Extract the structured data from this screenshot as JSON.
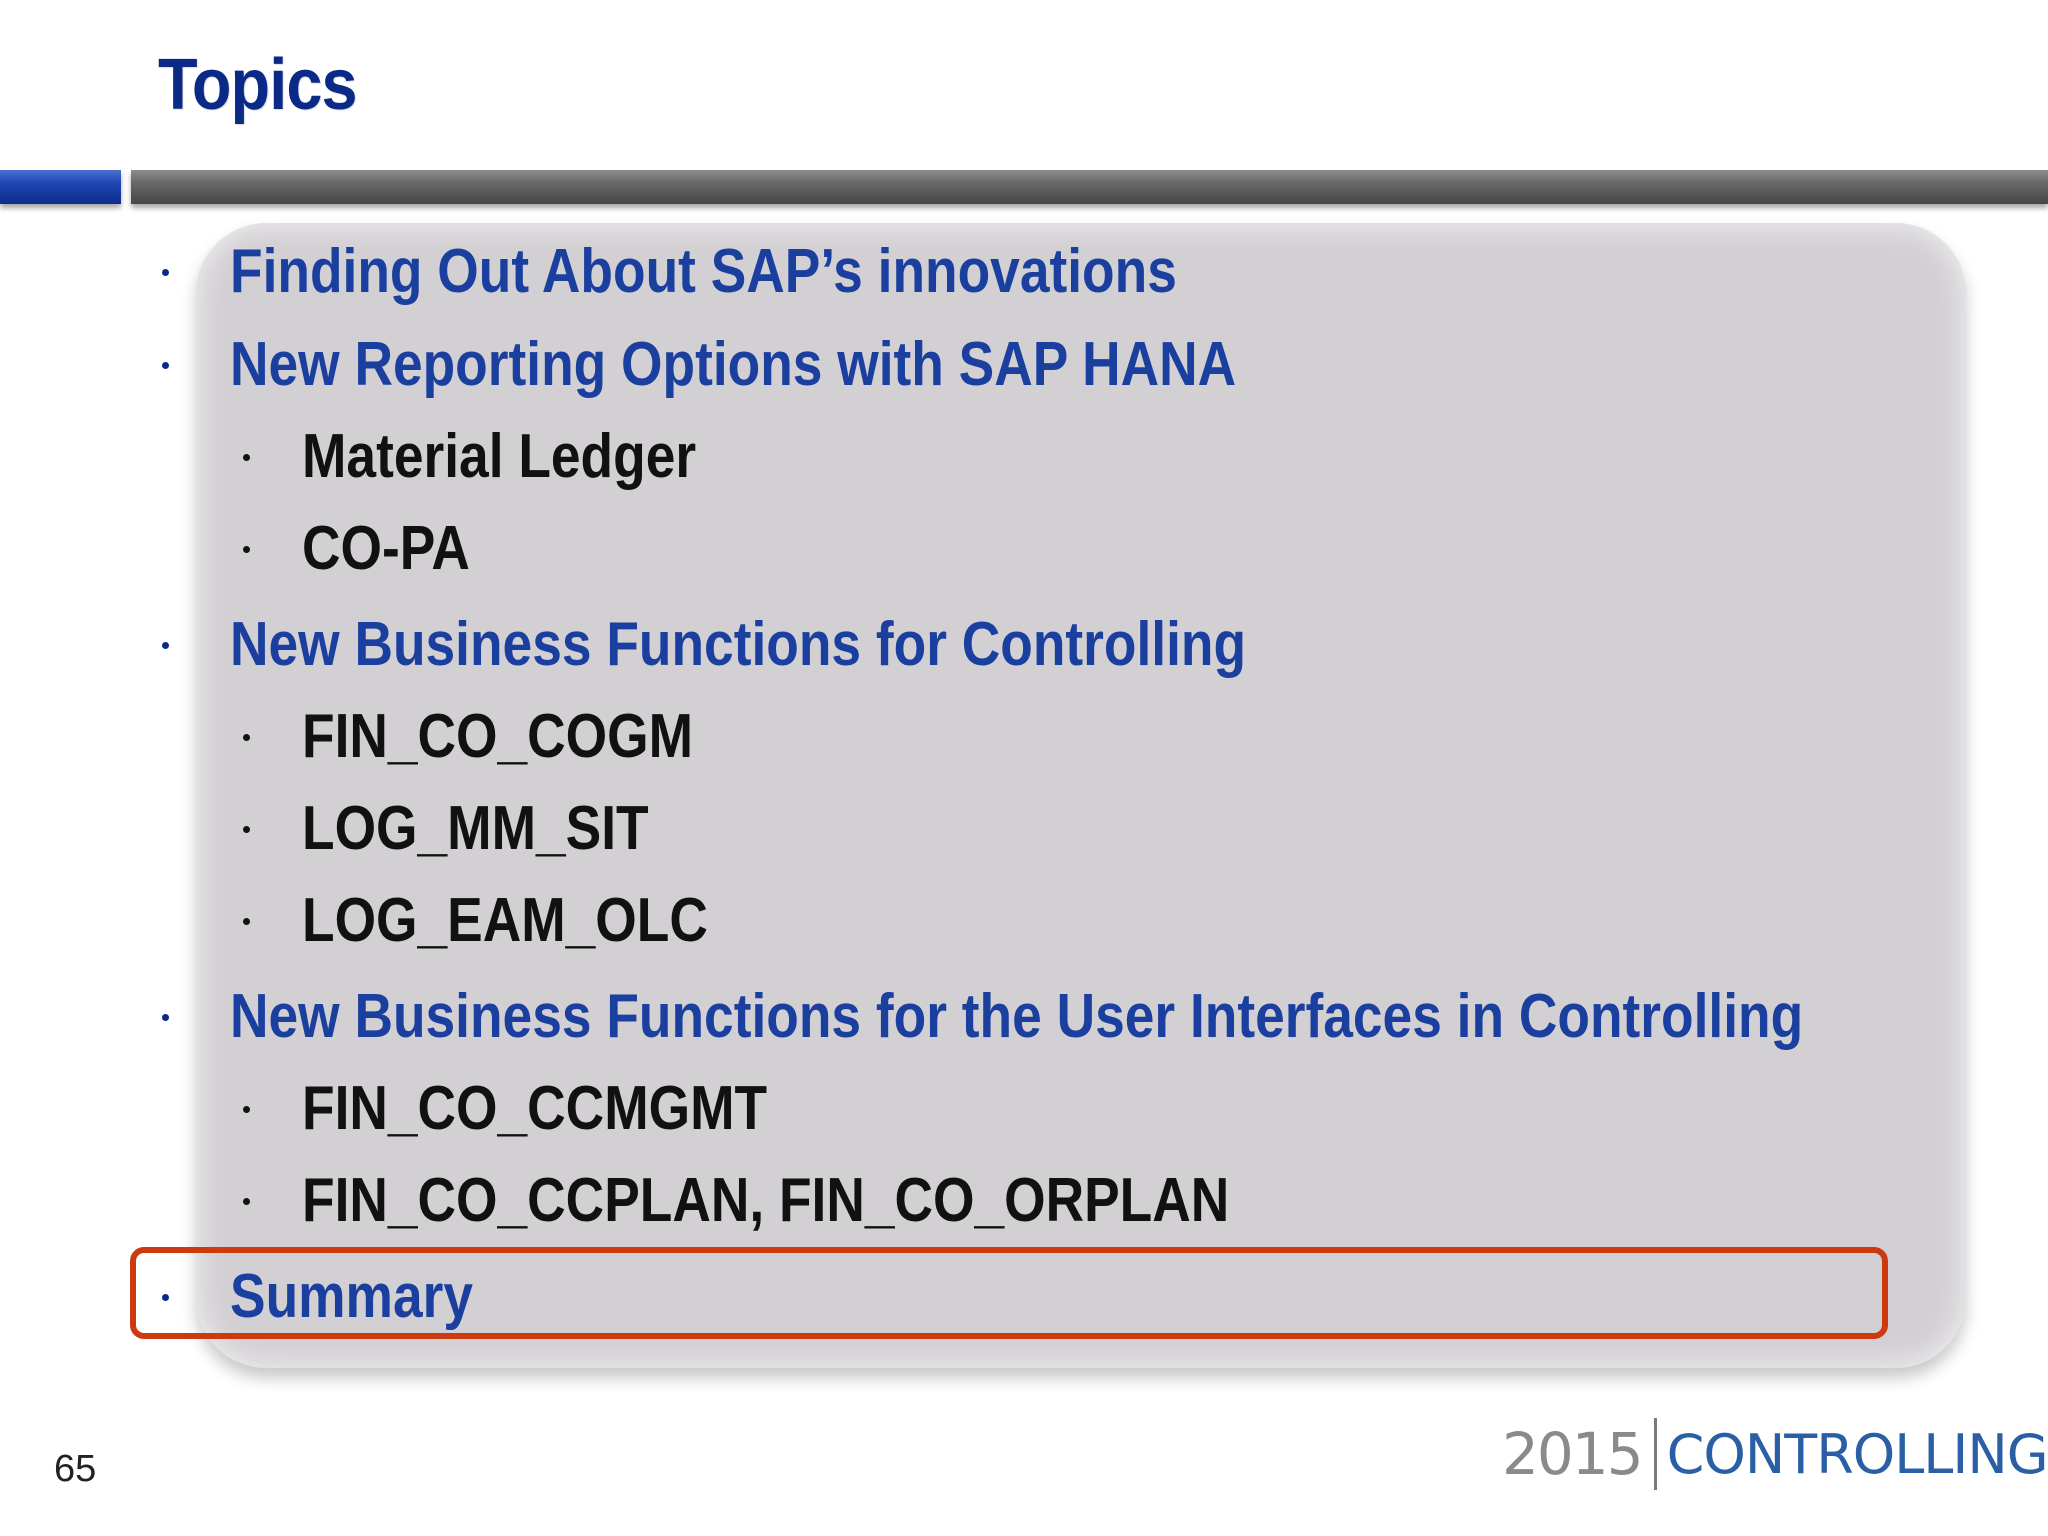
{
  "slide": {
    "title": "Topics",
    "page_number": "65"
  },
  "topics": [
    {
      "text": "Finding Out About SAP’s innovations",
      "level": 1
    },
    {
      "text": "New Reporting Options with SAP HANA",
      "level": 1
    },
    {
      "text": "Material Ledger",
      "level": 2
    },
    {
      "text": "CO-PA",
      "level": 2
    },
    {
      "text": "New Business Functions for Controlling",
      "level": 1
    },
    {
      "text": "FIN_CO_COGM",
      "level": 2
    },
    {
      "text": "LOG_MM_SIT",
      "level": 2
    },
    {
      "text": "LOG_EAM_OLC",
      "level": 2
    },
    {
      "text": "New Business Functions for the User Interfaces in Controlling",
      "level": 1
    },
    {
      "text": "FIN_CO_CCMGMT",
      "level": 2
    },
    {
      "text": "FIN_CO_CCPLAN, FIN_CO_ORPLAN",
      "level": 2
    },
    {
      "text": "Summary",
      "level": 1,
      "highlighted": true
    }
  ],
  "footer": {
    "logo_year": "2015",
    "logo_word": "CONTROLLING"
  },
  "colors": {
    "title": "#0b2a87",
    "level1_text": "#1a3f9e",
    "level2_text": "#111111",
    "panel": "#d3d0d4",
    "highlight_border": "#cc3a12",
    "logo_word": "#2a5fa6"
  }
}
